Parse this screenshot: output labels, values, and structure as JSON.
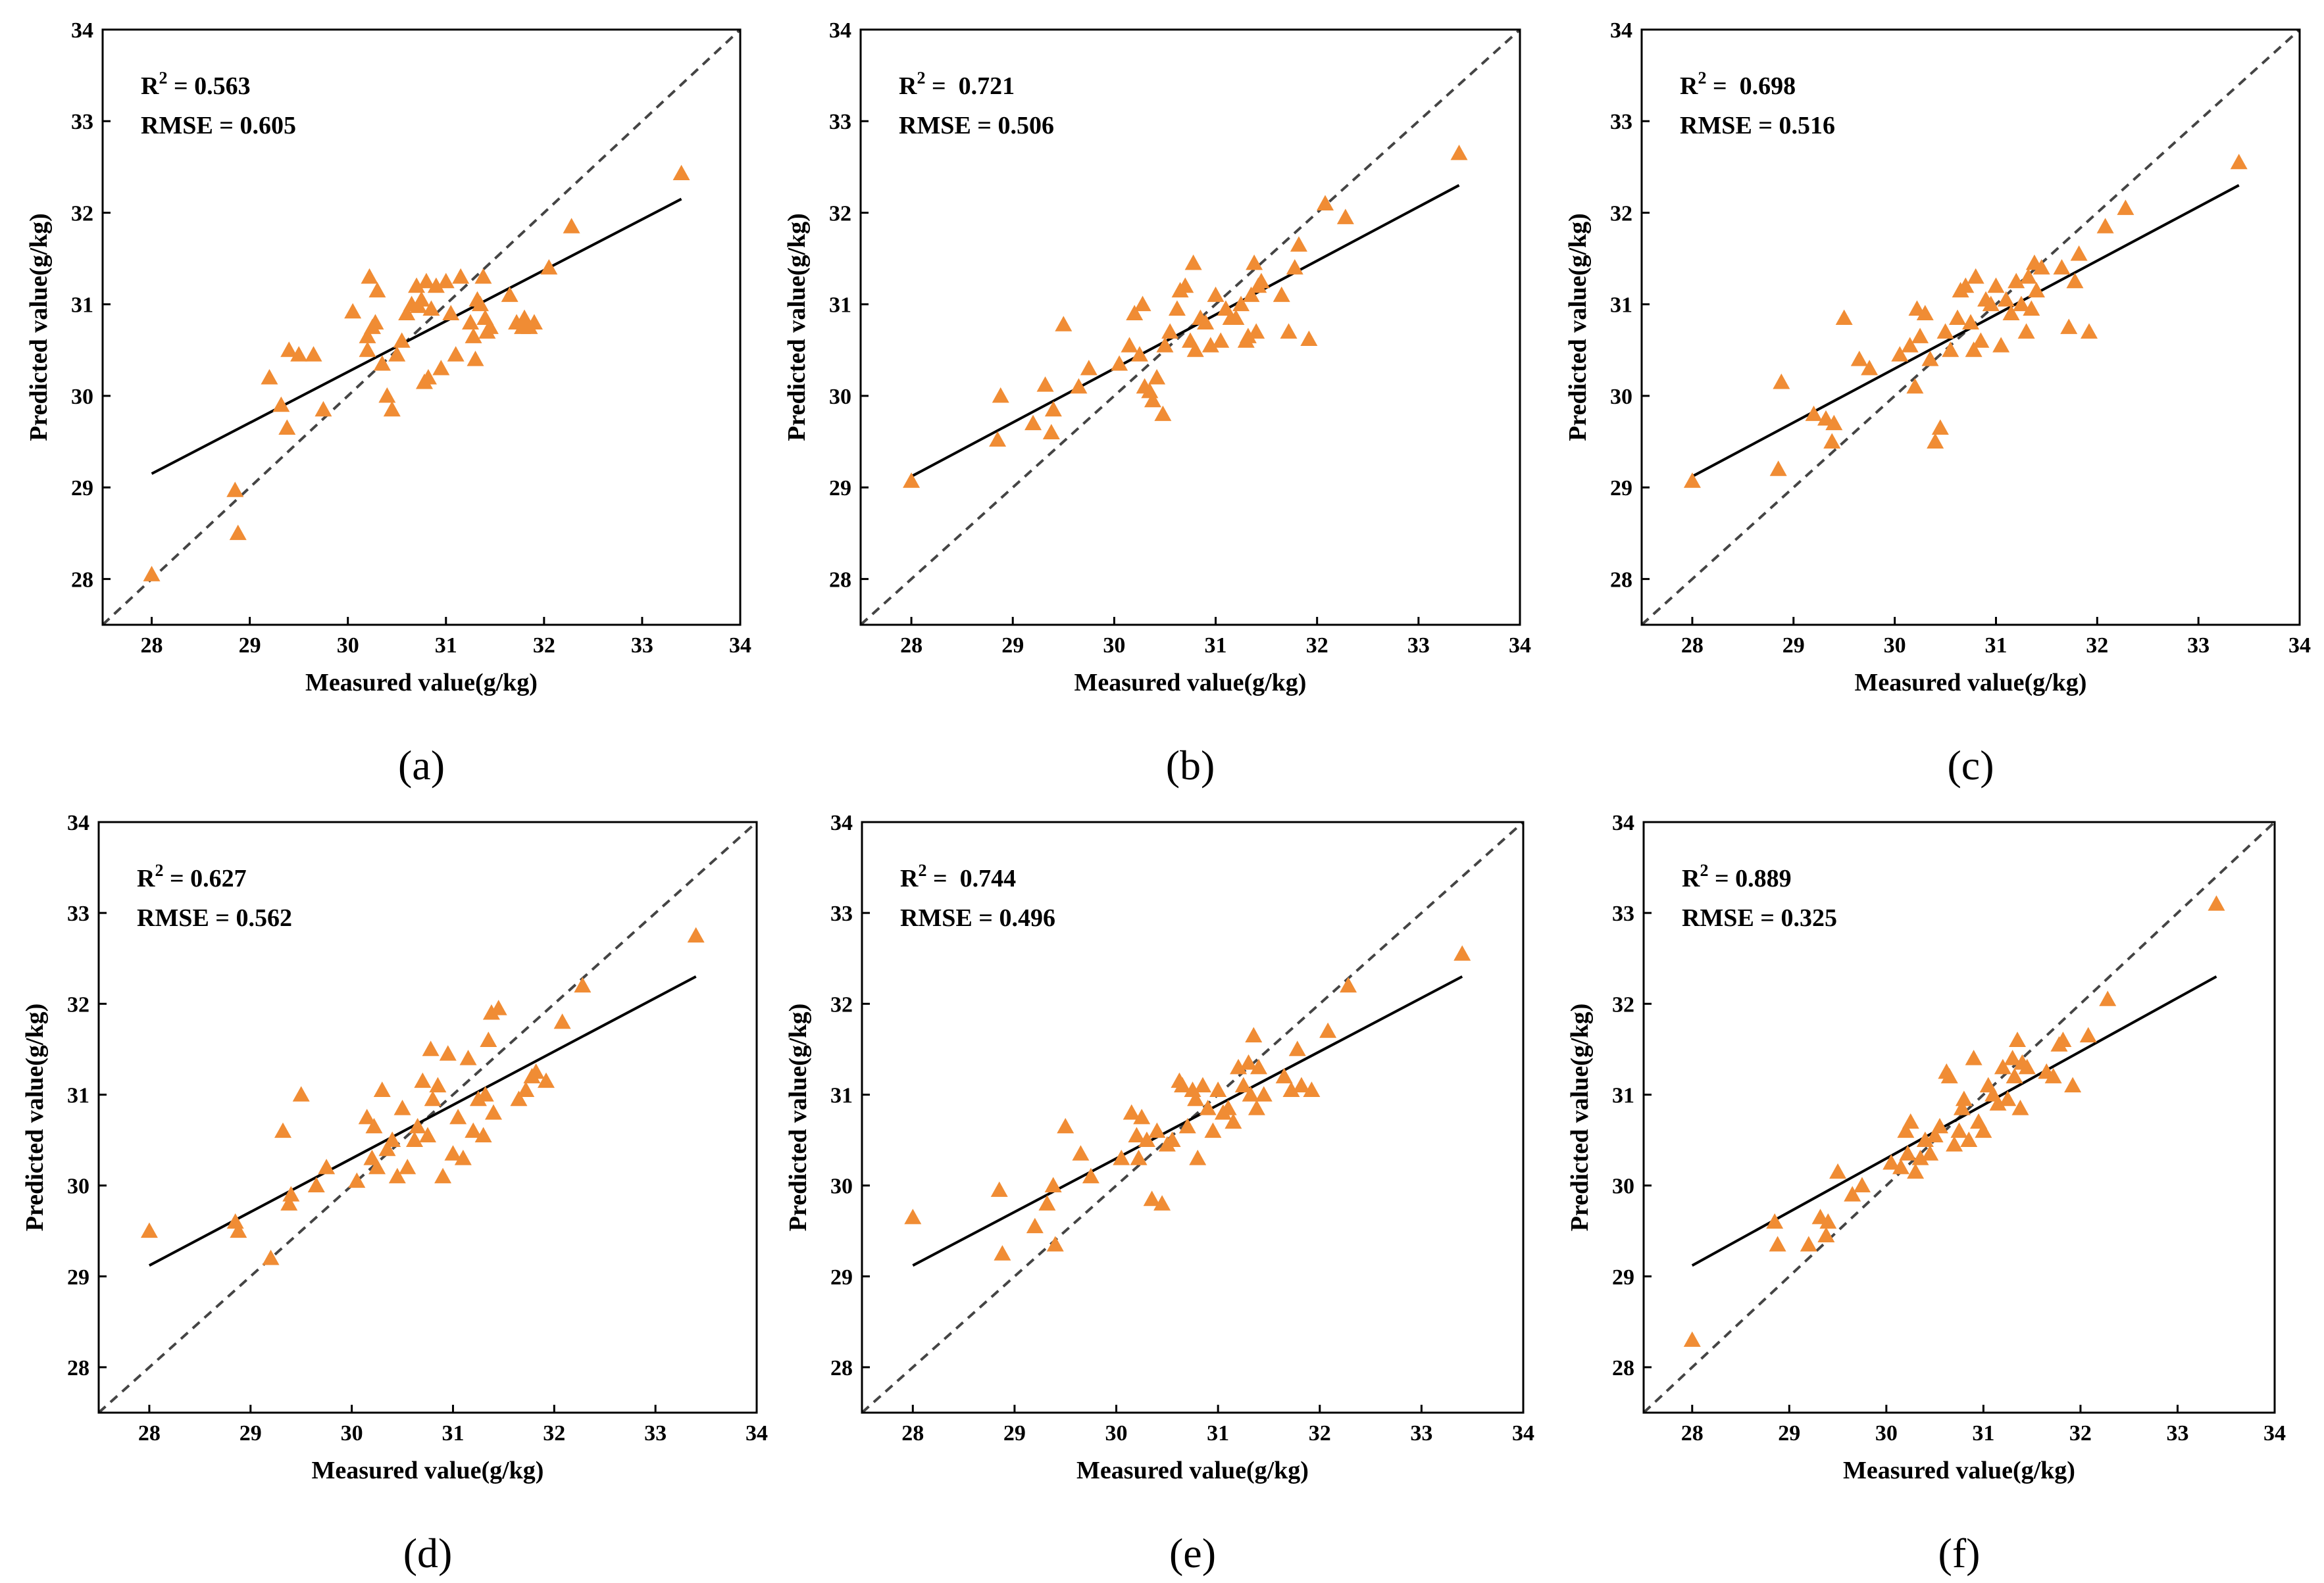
{
  "chart_data": [
    {
      "type": "scatter",
      "panel_label": "(a)",
      "r2_label": "R",
      "r2_sup": "2",
      "r2_value": " = 0.563",
      "rmse_text": "RMSE = 0.605",
      "xlabel": "Measured value(g/kg)",
      "ylabel": "Predicted value(g/kg)",
      "xlim": [
        27.5,
        34
      ],
      "ylim": [
        27.5,
        34
      ],
      "xticks": [
        28,
        29,
        30,
        31,
        32,
        33,
        34
      ],
      "yticks": [
        28,
        29,
        30,
        31,
        32,
        33,
        34
      ],
      "marker_color": "#f08c34",
      "fit_color": "#000000",
      "identity_color": "#444444",
      "fit_line": {
        "x": [
          28.0,
          33.4
        ],
        "y": [
          29.15,
          32.15
        ]
      },
      "identity_line": {
        "x": [
          27.5,
          34
        ],
        "y": [
          27.5,
          34
        ]
      },
      "x": [
        28.0,
        28.85,
        28.88,
        29.2,
        29.32,
        29.38,
        29.4,
        29.5,
        29.65,
        29.75,
        30.05,
        30.2,
        30.2,
        30.22,
        30.25,
        30.28,
        30.3,
        30.35,
        30.4,
        30.45,
        30.5,
        30.55,
        30.6,
        30.65,
        30.7,
        30.72,
        30.75,
        30.78,
        30.8,
        30.82,
        30.85,
        30.9,
        30.95,
        31.0,
        31.05,
        31.1,
        31.15,
        31.25,
        31.28,
        31.3,
        31.32,
        31.35,
        31.38,
        31.4,
        31.42,
        31.45,
        31.65,
        31.72,
        31.78,
        31.8,
        31.85,
        31.9,
        32.05,
        32.28,
        33.4
      ],
      "y": [
        28.05,
        28.97,
        28.5,
        30.2,
        29.9,
        29.65,
        30.5,
        30.45,
        30.45,
        29.85,
        30.92,
        30.5,
        30.65,
        31.3,
        30.75,
        30.8,
        31.15,
        30.35,
        30.0,
        29.85,
        30.45,
        30.6,
        30.9,
        31.0,
        31.2,
        30.98,
        31.05,
        30.15,
        31.25,
        30.2,
        30.95,
        31.2,
        30.3,
        31.25,
        30.9,
        30.45,
        31.3,
        30.8,
        30.65,
        30.4,
        31.05,
        31.0,
        31.3,
        30.85,
        30.7,
        30.75,
        31.1,
        30.8,
        30.75,
        30.85,
        30.75,
        30.8,
        31.4,
        31.85,
        32.43
      ]
    },
    {
      "type": "scatter",
      "panel_label": "(b)",
      "r2_label": "R",
      "r2_sup": "2",
      "r2_value": " =  0.721",
      "rmse_text": "RMSE = 0.506",
      "xlabel": "Measured value(g/kg)",
      "ylabel": "Predicted value(g/kg)",
      "xlim": [
        27.5,
        34
      ],
      "ylim": [
        27.5,
        34
      ],
      "xticks": [
        28,
        29,
        30,
        31,
        32,
        33,
        34
      ],
      "yticks": [
        28,
        29,
        30,
        31,
        32,
        33,
        34
      ],
      "marker_color": "#f08c34",
      "fit_color": "#000000",
      "identity_color": "#444444",
      "fit_line": {
        "x": [
          28.0,
          33.4
        ],
        "y": [
          29.12,
          32.3
        ]
      },
      "identity_line": {
        "x": [
          27.5,
          34
        ],
        "y": [
          27.5,
          34
        ]
      },
      "x": [
        28.0,
        28.85,
        28.88,
        29.2,
        29.32,
        29.38,
        29.4,
        29.5,
        29.65,
        29.75,
        30.05,
        30.15,
        30.2,
        30.25,
        30.28,
        30.3,
        30.35,
        30.38,
        30.42,
        30.48,
        30.5,
        30.55,
        30.62,
        30.65,
        30.7,
        30.75,
        30.78,
        30.8,
        30.85,
        30.9,
        30.95,
        31.0,
        31.05,
        31.1,
        31.15,
        31.2,
        31.25,
        31.3,
        31.32,
        31.35,
        31.38,
        31.4,
        31.42,
        31.45,
        31.65,
        31.72,
        31.78,
        31.82,
        31.92,
        32.08,
        32.28,
        33.4
      ],
      "y": [
        29.07,
        29.52,
        30.0,
        29.7,
        30.12,
        29.6,
        29.85,
        30.78,
        30.1,
        30.3,
        30.35,
        30.55,
        30.9,
        30.45,
        31.0,
        30.1,
        30.05,
        29.95,
        30.2,
        29.8,
        30.55,
        30.7,
        30.95,
        31.15,
        31.2,
        30.6,
        31.45,
        30.5,
        30.85,
        30.8,
        30.55,
        31.1,
        30.6,
        30.95,
        30.85,
        30.85,
        31.0,
        30.6,
        30.65,
        31.1,
        31.45,
        30.7,
        31.2,
        31.25,
        31.1,
        30.7,
        31.4,
        31.65,
        30.62,
        32.1,
        31.95,
        32.65
      ]
    },
    {
      "type": "scatter",
      "panel_label": "(c)",
      "r2_label": "R",
      "r2_sup": "2",
      "r2_value": " =  0.698",
      "rmse_text": "RMSE = 0.516",
      "xlabel": "Measured value(g/kg)",
      "ylabel": "Predicted value(g/kg)",
      "xlim": [
        27.5,
        34
      ],
      "ylim": [
        27.5,
        34
      ],
      "xticks": [
        28,
        29,
        30,
        31,
        32,
        33,
        34
      ],
      "yticks": [
        28,
        29,
        30,
        31,
        32,
        33,
        34
      ],
      "marker_color": "#f08c34",
      "fit_color": "#000000",
      "identity_color": "#444444",
      "fit_line": {
        "x": [
          28.0,
          33.4
        ],
        "y": [
          29.12,
          32.3
        ]
      },
      "identity_line": {
        "x": [
          27.5,
          34
        ],
        "y": [
          27.5,
          34
        ]
      },
      "x": [
        28.0,
        28.85,
        28.88,
        29.2,
        29.32,
        29.38,
        29.4,
        29.5,
        29.65,
        29.75,
        30.05,
        30.15,
        30.2,
        30.22,
        30.25,
        30.3,
        30.35,
        30.4,
        30.45,
        30.5,
        30.55,
        30.62,
        30.65,
        30.7,
        30.75,
        30.78,
        30.8,
        30.85,
        30.9,
        30.95,
        31.0,
        31.05,
        31.1,
        31.15,
        31.2,
        31.25,
        31.3,
        31.32,
        31.35,
        31.38,
        31.4,
        31.45,
        31.65,
        31.72,
        31.78,
        31.82,
        31.92,
        32.08,
        32.28,
        33.4
      ],
      "y": [
        29.07,
        29.2,
        30.15,
        29.8,
        29.75,
        29.5,
        29.7,
        30.85,
        30.4,
        30.3,
        30.45,
        30.55,
        30.1,
        30.95,
        30.65,
        30.9,
        30.4,
        29.5,
        29.65,
        30.7,
        30.5,
        30.85,
        31.15,
        31.2,
        30.8,
        30.5,
        31.3,
        30.6,
        31.05,
        31.0,
        31.2,
        30.55,
        31.05,
        30.9,
        31.25,
        31.0,
        30.7,
        31.3,
        30.95,
        31.45,
        31.15,
        31.4,
        31.4,
        30.75,
        31.25,
        31.55,
        30.7,
        31.85,
        32.05,
        32.55
      ]
    },
    {
      "type": "scatter",
      "panel_label": "(d)",
      "r2_label": "R",
      "r2_sup": "2",
      "r2_value": " = 0.627",
      "rmse_text": "RMSE = 0.562",
      "xlabel": "Measured value(g/kg)",
      "ylabel": "Predicted value(g/kg)",
      "xlim": [
        27.5,
        34
      ],
      "ylim": [
        27.5,
        34
      ],
      "xticks": [
        28,
        29,
        30,
        31,
        32,
        33,
        34
      ],
      "yticks": [
        28,
        29,
        30,
        31,
        32,
        33,
        34
      ],
      "marker_color": "#f08c34",
      "fit_color": "#000000",
      "identity_color": "#444444",
      "fit_line": {
        "x": [
          28.0,
          33.4
        ],
        "y": [
          29.12,
          32.3
        ]
      },
      "identity_line": {
        "x": [
          27.5,
          34
        ],
        "y": [
          27.5,
          34
        ]
      },
      "x": [
        28.0,
        28.85,
        28.88,
        29.2,
        29.32,
        29.38,
        29.4,
        29.5,
        29.65,
        29.75,
        30.05,
        30.15,
        30.2,
        30.22,
        30.25,
        30.3,
        30.35,
        30.4,
        30.45,
        30.5,
        30.55,
        30.62,
        30.65,
        30.7,
        30.75,
        30.78,
        30.8,
        30.85,
        30.9,
        30.95,
        31.0,
        31.05,
        31.1,
        31.15,
        31.2,
        31.25,
        31.3,
        31.32,
        31.35,
        31.38,
        31.4,
        31.45,
        31.65,
        31.72,
        31.78,
        31.82,
        31.92,
        32.08,
        32.28,
        33.4
      ],
      "y": [
        29.5,
        29.6,
        29.5,
        29.2,
        30.6,
        29.8,
        29.9,
        31.0,
        30.0,
        30.2,
        30.05,
        30.75,
        30.3,
        30.65,
        30.2,
        31.05,
        30.4,
        30.5,
        30.1,
        30.85,
        30.2,
        30.5,
        30.65,
        31.15,
        30.55,
        31.5,
        30.95,
        31.1,
        30.1,
        31.45,
        30.35,
        30.75,
        30.3,
        31.4,
        30.6,
        30.95,
        30.55,
        31.0,
        31.6,
        31.9,
        30.8,
        31.95,
        30.95,
        31.05,
        31.2,
        31.25,
        31.15,
        31.8,
        32.2,
        32.75
      ]
    },
    {
      "type": "scatter",
      "panel_label": "(e)",
      "r2_label": "R",
      "r2_sup": "2",
      "r2_value": " =  0.744",
      "rmse_text": "RMSE = 0.496",
      "xlabel": "Measured value(g/kg)",
      "ylabel": "Predicted value(g/kg)",
      "xlim": [
        27.5,
        34
      ],
      "ylim": [
        27.5,
        34
      ],
      "xticks": [
        28,
        29,
        30,
        31,
        32,
        33,
        34
      ],
      "yticks": [
        28,
        29,
        30,
        31,
        32,
        33,
        34
      ],
      "marker_color": "#f08c34",
      "fit_color": "#000000",
      "identity_color": "#444444",
      "fit_line": {
        "x": [
          28.0,
          33.4
        ],
        "y": [
          29.12,
          32.3
        ]
      },
      "identity_line": {
        "x": [
          27.5,
          34
        ],
        "y": [
          27.5,
          34
        ]
      },
      "x": [
        28.0,
        28.85,
        28.88,
        29.2,
        29.32,
        29.38,
        29.4,
        29.5,
        29.65,
        29.75,
        30.05,
        30.15,
        30.2,
        30.22,
        30.25,
        30.3,
        30.35,
        30.4,
        30.45,
        30.5,
        30.55,
        30.62,
        30.65,
        30.7,
        30.75,
        30.78,
        30.8,
        30.85,
        30.9,
        30.95,
        31.0,
        31.05,
        31.1,
        31.15,
        31.2,
        31.25,
        31.3,
        31.32,
        31.35,
        31.38,
        31.4,
        31.45,
        31.65,
        31.72,
        31.78,
        31.82,
        31.92,
        32.08,
        32.28,
        33.4
      ],
      "y": [
        29.65,
        29.95,
        29.25,
        29.55,
        29.8,
        30.0,
        29.35,
        30.65,
        30.35,
        30.1,
        30.3,
        30.8,
        30.55,
        30.3,
        30.75,
        30.5,
        29.85,
        30.6,
        29.8,
        30.45,
        30.5,
        31.15,
        31.1,
        30.65,
        31.05,
        30.95,
        30.3,
        31.1,
        30.85,
        30.6,
        31.05,
        30.8,
        30.85,
        30.7,
        31.3,
        31.1,
        31.35,
        31.0,
        31.65,
        30.85,
        31.3,
        31.0,
        31.2,
        31.05,
        31.5,
        31.1,
        31.05,
        31.7,
        32.2,
        32.55
      ]
    },
    {
      "type": "scatter",
      "panel_label": "(f)",
      "r2_label": "R",
      "r2_sup": "2",
      "r2_value": " = 0.889",
      "rmse_text": "RMSE = 0.325",
      "xlabel": "Measured value(g/kg)",
      "ylabel": "Predicted value(g/kg)",
      "xlim": [
        27.5,
        34
      ],
      "ylim": [
        27.5,
        34
      ],
      "xticks": [
        28,
        29,
        30,
        31,
        32,
        33,
        34
      ],
      "yticks": [
        28,
        29,
        30,
        31,
        32,
        33,
        34
      ],
      "marker_color": "#f08c34",
      "fit_color": "#000000",
      "identity_color": "#444444",
      "fit_line": {
        "x": [
          28.0,
          33.4
        ],
        "y": [
          29.12,
          32.3
        ]
      },
      "identity_line": {
        "x": [
          27.5,
          34
        ],
        "y": [
          27.5,
          34
        ]
      },
      "x": [
        28.0,
        28.85,
        28.88,
        29.2,
        29.32,
        29.38,
        29.4,
        29.5,
        29.65,
        29.75,
        30.05,
        30.15,
        30.2,
        30.22,
        30.25,
        30.3,
        30.35,
        30.4,
        30.45,
        30.5,
        30.55,
        30.62,
        30.65,
        30.7,
        30.75,
        30.78,
        30.8,
        30.85,
        30.9,
        30.95,
        31.0,
        31.05,
        31.1,
        31.15,
        31.2,
        31.25,
        31.3,
        31.32,
        31.35,
        31.38,
        31.4,
        31.45,
        31.65,
        31.72,
        31.78,
        31.82,
        31.92,
        32.08,
        32.28,
        33.4
      ],
      "y": [
        28.3,
        29.6,
        29.35,
        29.35,
        29.65,
        29.45,
        29.6,
        30.15,
        29.9,
        30.0,
        30.25,
        30.2,
        30.6,
        30.35,
        30.7,
        30.15,
        30.3,
        30.5,
        30.35,
        30.55,
        30.65,
        31.25,
        31.2,
        30.45,
        30.6,
        30.85,
        30.95,
        30.5,
        31.4,
        30.7,
        30.6,
        31.1,
        31.0,
        30.9,
        31.3,
        30.95,
        31.4,
        31.2,
        31.6,
        30.85,
        31.35,
        31.3,
        31.25,
        31.2,
        31.55,
        31.6,
        31.1,
        31.65,
        32.05,
        33.1
      ]
    }
  ]
}
